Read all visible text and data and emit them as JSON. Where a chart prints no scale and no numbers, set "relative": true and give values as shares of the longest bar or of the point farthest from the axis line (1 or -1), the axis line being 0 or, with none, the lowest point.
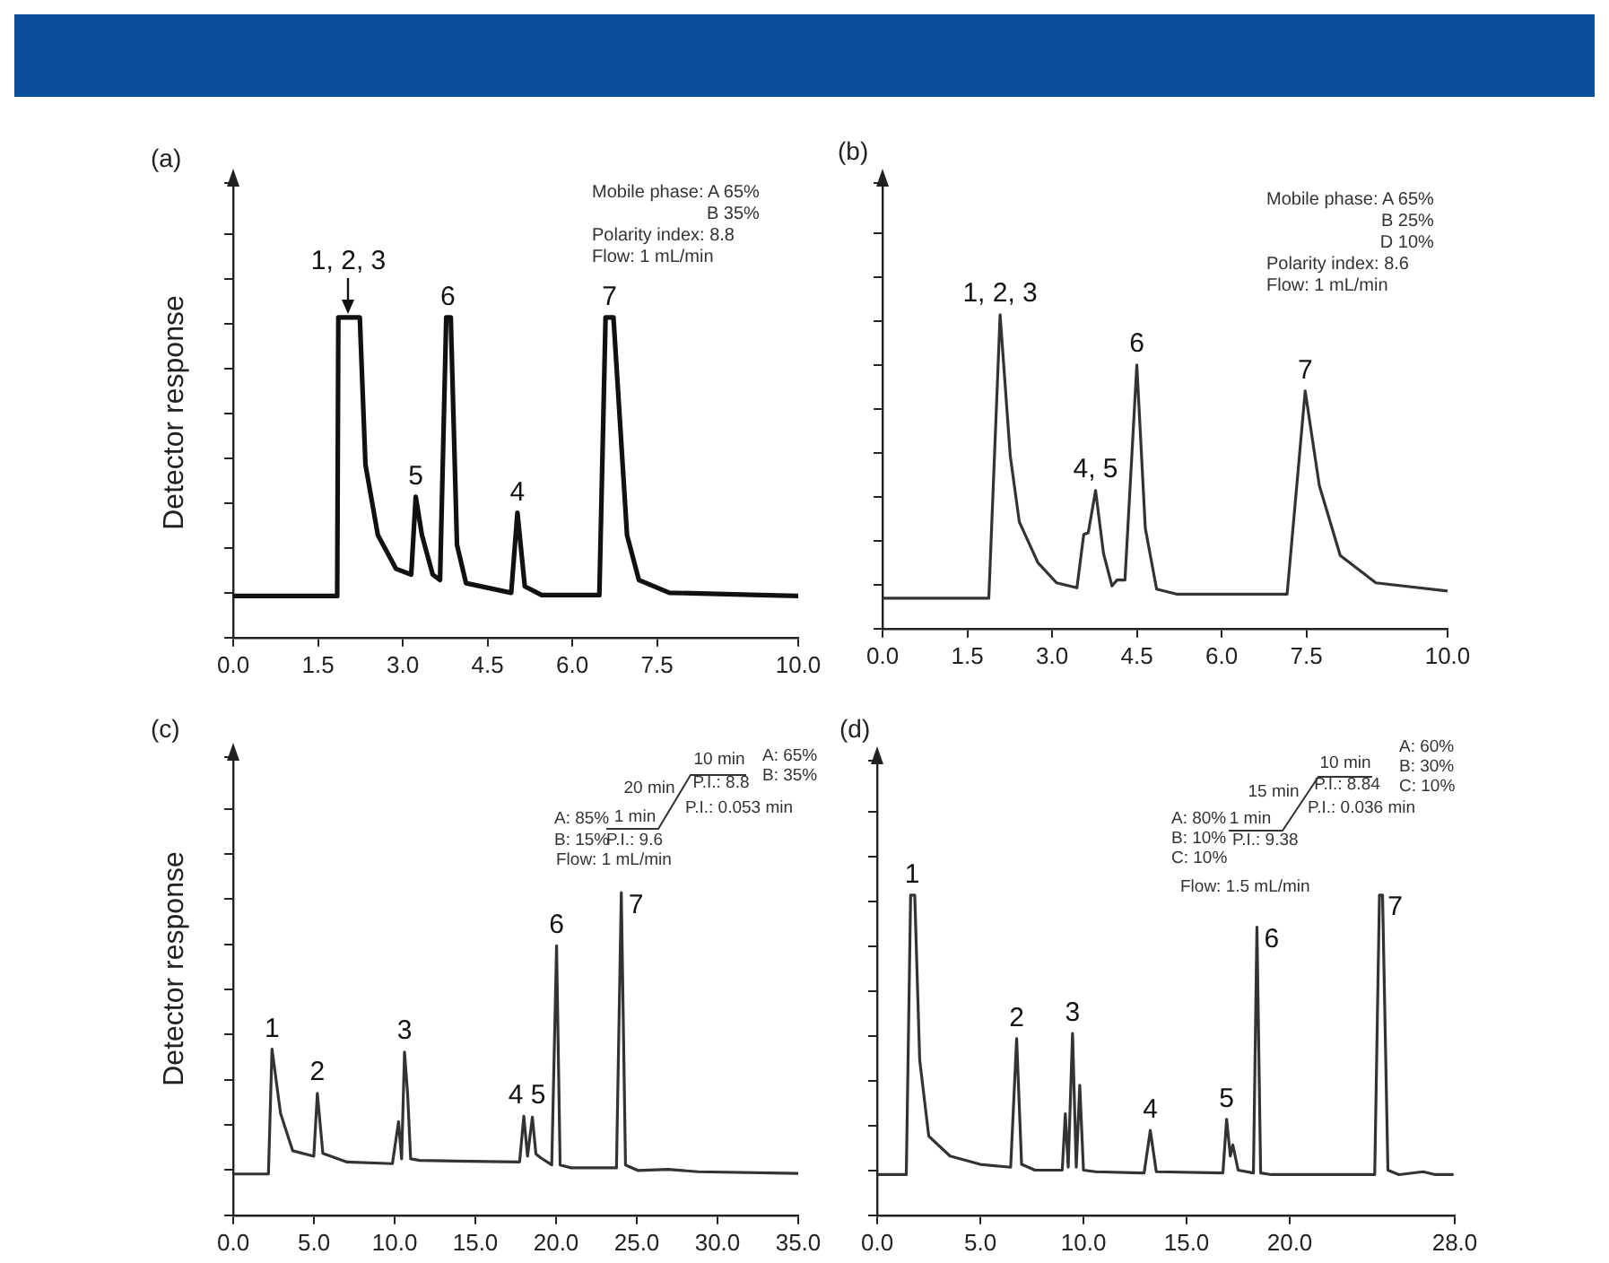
{
  "chart_data": [
    {
      "type": "line",
      "title": "(a)",
      "ylabel": "Detector response",
      "relative": true,
      "grid": false,
      "xlim": [
        0,
        10
      ],
      "xticks": [
        {
          "value": 0,
          "label": "0.0"
        },
        {
          "value": 1.5,
          "label": "1.5"
        },
        {
          "value": 3,
          "label": "3.0"
        },
        {
          "value": 4.5,
          "label": "4.5"
        },
        {
          "value": 6,
          "label": "6.0"
        },
        {
          "value": 7.5,
          "label": "7.5"
        },
        {
          "value": 10,
          "label": "10.0"
        }
      ],
      "x": [
        0,
        1.84,
        1.86,
        2.24,
        2.34,
        2.56,
        2.88,
        3.15,
        3.23,
        3.34,
        3.53,
        3.66,
        3.77,
        3.85,
        3.96,
        4.12,
        4.92,
        5.03,
        5.16,
        5.46,
        6.48,
        6.59,
        6.73,
        6.97,
        7.18,
        7.72,
        9.33,
        10
      ],
      "series": [
        {
          "color": "#111111",
          "values": [
            0.13,
            0.13,
            1.0,
            1.0,
            0.54,
            0.32,
            0.215,
            0.197,
            0.44,
            0.32,
            0.197,
            0.18,
            1.0,
            1.0,
            0.29,
            0.17,
            0.14,
            0.39,
            0.16,
            0.133,
            0.133,
            1.0,
            1.0,
            0.32,
            0.18,
            0.14,
            0.133,
            0.13
          ]
        }
      ],
      "annotations": [
        {
          "text": "1, 2, 3",
          "x": 2.04,
          "y": 1.0
        },
        {
          "text": "5",
          "x": 3.23,
          "y": 0.44
        },
        {
          "text": "6",
          "x": 3.8,
          "y": 1.0
        },
        {
          "text": "4",
          "x": 5.03,
          "y": 0.39
        },
        {
          "text": "7",
          "x": 6.66,
          "y": 1.0
        },
        "Mobile phase: A 65%",
        "B 35%",
        "Polarity index: 8.8",
        "Flow: 1 mL/min"
      ]
    },
    {
      "type": "line",
      "title": "(b)",
      "relative": true,
      "grid": false,
      "xlim": [
        0,
        10
      ],
      "xticks": [
        {
          "value": 0,
          "label": "0.0"
        },
        {
          "value": 1.5,
          "label": "1.5"
        },
        {
          "value": 3,
          "label": "3.0"
        },
        {
          "value": 4.5,
          "label": "4.5"
        },
        {
          "value": 6,
          "label": "6.0"
        },
        {
          "value": 7.5,
          "label": "7.5"
        },
        {
          "value": 10,
          "label": "10.0"
        }
      ],
      "x": [
        0,
        1.88,
        2.08,
        2.26,
        2.42,
        2.75,
        3.08,
        3.44,
        3.56,
        3.64,
        3.77,
        3.91,
        4.06,
        4.15,
        4.29,
        4.5,
        4.65,
        4.85,
        5.2,
        7.16,
        7.48,
        7.73,
        8.1,
        8.73,
        10
      ],
      "series": [
        {
          "color": "#333333",
          "values": [
            0.097,
            0.097,
            1.0,
            0.55,
            0.34,
            0.21,
            0.146,
            0.13,
            0.3,
            0.305,
            0.44,
            0.24,
            0.136,
            0.155,
            0.155,
            0.84,
            0.32,
            0.126,
            0.11,
            0.11,
            0.757,
            0.456,
            0.233,
            0.146,
            0.12
          ]
        }
      ],
      "annotations": [
        {
          "text": "1, 2, 3",
          "x": 2.08,
          "y": 1.0
        },
        {
          "text": "4, 5",
          "x": 3.77,
          "y": 0.44
        },
        {
          "text": "6",
          "x": 4.5,
          "y": 0.84
        },
        {
          "text": "7",
          "x": 7.48,
          "y": 0.757
        },
        "Mobile phase: A 65%",
        "B 25%",
        "D 10%",
        "Polarity index: 8.6",
        "Flow: 1 mL/min"
      ]
    },
    {
      "type": "line",
      "title": "(c)",
      "ylabel": "Detector response",
      "relative": true,
      "grid": false,
      "xlim": [
        0,
        35
      ],
      "xticks": [
        {
          "value": 0,
          "label": "0.0"
        },
        {
          "value": 5,
          "label": "5.0"
        },
        {
          "value": 10,
          "label": "10.0"
        },
        {
          "value": 15,
          "label": "15.0"
        },
        {
          "value": 20,
          "label": "20.0"
        },
        {
          "value": 25,
          "label": "25.0"
        },
        {
          "value": 30,
          "label": "30.0"
        },
        {
          "value": 35,
          "label": "35.0"
        }
      ],
      "x": [
        0,
        2.18,
        2.4,
        2.93,
        3.68,
        4.99,
        5.21,
        5.55,
        7.05,
        9.86,
        10.24,
        10.43,
        10.61,
        10.8,
        10.99,
        11.55,
        17.74,
        18.0,
        18.23,
        18.53,
        18.75,
        19.05,
        19.73,
        20.03,
        20.25,
        20.93,
        23.74,
        24.04,
        24.3,
        25.06,
        26.93,
        28.8,
        35
      ],
      "series": [
        {
          "color": "#333333",
          "values": [
            0.128,
            0.128,
            0.515,
            0.316,
            0.2,
            0.183,
            0.378,
            0.192,
            0.165,
            0.16,
            0.29,
            0.175,
            0.506,
            0.378,
            0.175,
            0.17,
            0.165,
            0.307,
            0.183,
            0.304,
            0.19,
            0.178,
            0.156,
            0.835,
            0.156,
            0.147,
            0.147,
            1.0,
            0.156,
            0.139,
            0.142,
            0.135,
            0.13
          ]
        }
      ],
      "annotations": [
        {
          "text": "1",
          "x": 2.4,
          "y": 0.515
        },
        {
          "text": "2",
          "x": 5.21,
          "y": 0.378
        },
        {
          "text": "3",
          "x": 10.61,
          "y": 0.506
        },
        {
          "text": "4 5",
          "x": 18.2,
          "y": 0.307
        },
        {
          "text": "6",
          "x": 20.03,
          "y": 0.835
        },
        {
          "text": "7",
          "x": 24.04,
          "y": 1.0
        },
        "A: 85%",
        "B: 15%",
        "1 min",
        "P.I.: 9.6",
        "20 min",
        "10 min",
        "P.I.: 8.8",
        "P.I.: 0.053 min",
        "A: 65%",
        "B: 35%",
        "Flow: 1 mL/min"
      ]
    },
    {
      "type": "line",
      "title": "(d)",
      "relative": true,
      "grid": false,
      "xlim": [
        0,
        28
      ],
      "xticks": [
        {
          "value": 0,
          "label": "0.0"
        },
        {
          "value": 5,
          "label": "5.0"
        },
        {
          "value": 10,
          "label": "10.0"
        },
        {
          "value": 15,
          "label": "15.0"
        },
        {
          "value": 20,
          "label": "20.0"
        },
        {
          "value": 28,
          "label": "28.0"
        }
      ],
      "x": [
        0,
        1.41,
        1.62,
        1.82,
        2.06,
        2.5,
        3.53,
        5.0,
        6.47,
        6.76,
        7.0,
        7.65,
        8.97,
        9.12,
        9.26,
        9.47,
        9.65,
        9.82,
        10.0,
        10.59,
        12.94,
        13.24,
        13.53,
        16.76,
        16.94,
        17.12,
        17.24,
        17.5,
        18.24,
        18.41,
        18.59,
        19.12,
        24.12,
        24.35,
        24.5,
        24.76,
        25.29,
        26.47,
        27.06,
        27.94
      ],
      "series": [
        {
          "color": "#333333",
          "values": [
            0.127,
            0.127,
            1.0,
            1.0,
            0.485,
            0.247,
            0.185,
            0.159,
            0.15,
            0.552,
            0.159,
            0.141,
            0.141,
            0.317,
            0.15,
            0.568,
            0.15,
            0.406,
            0.141,
            0.136,
            0.132,
            0.265,
            0.136,
            0.132,
            0.3,
            0.185,
            0.22,
            0.141,
            0.132,
            0.9,
            0.132,
            0.127,
            0.127,
            1.0,
            1.0,
            0.141,
            0.127,
            0.136,
            0.127,
            0.127
          ]
        }
      ],
      "annotations": [
        {
          "text": "1",
          "x": 1.7,
          "y": 1.0
        },
        {
          "text": "2",
          "x": 6.76,
          "y": 0.552
        },
        {
          "text": "3",
          "x": 9.47,
          "y": 0.568
        },
        {
          "text": "4",
          "x": 13.24,
          "y": 0.265
        },
        {
          "text": "5",
          "x": 16.94,
          "y": 0.3
        },
        {
          "text": "6",
          "x": 18.41,
          "y": 0.9
        },
        {
          "text": "7",
          "x": 24.4,
          "y": 1.0
        },
        "A: 80%",
        "B: 10%",
        "C: 10%",
        "1 min",
        "P.I.: 9.38",
        "15 min",
        "10 min",
        "P.I.: 8.84",
        "P.I.: 0.036 min",
        "A: 60%",
        "B: 30%",
        "C: 10%",
        "Flow: 1.5 mL/min"
      ]
    }
  ]
}
